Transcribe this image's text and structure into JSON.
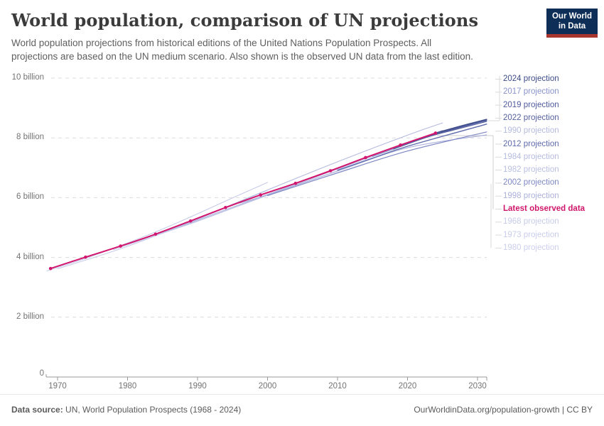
{
  "header": {
    "title": "World population, comparison of UN projections",
    "subtitle_lines": [
      "World population projections from historical editions of the United Nations Population Prospects. All",
      "projections are based on the UN medium scenario. Also shown is the observed UN data from the last edition."
    ],
    "logo": {
      "line1": "Our World",
      "line2": "in Data",
      "bg": "#0d2e57",
      "accent": "#a8352e"
    }
  },
  "footer": {
    "source_label": "Data source:",
    "source_text": " UN, World Population Prospects (1968 - 2024)",
    "credit": "OurWorldinData.org/population-growth | CC BY"
  },
  "chart_data": {
    "type": "line",
    "title": "World population, comparison of UN projections",
    "xlabel": "",
    "ylabel": "",
    "unit": "billion people",
    "x_range": [
      1968,
      2032
    ],
    "y_range": [
      0,
      10
    ],
    "grid": "horizontal-dashed",
    "legend_position": "right",
    "x_ticks": [
      {
        "value": 1970,
        "label": "1970"
      },
      {
        "value": 1980,
        "label": "1980"
      },
      {
        "value": 1990,
        "label": "1990"
      },
      {
        "value": 2000,
        "label": "2000"
      },
      {
        "value": 2010,
        "label": "2010"
      },
      {
        "value": 2020,
        "label": "2020"
      },
      {
        "value": 2030,
        "label": "2030"
      }
    ],
    "y_ticks": [
      {
        "value": 10,
        "label": "10 billion"
      },
      {
        "value": 8,
        "label": "8 billion"
      },
      {
        "value": 6,
        "label": "6 billion"
      },
      {
        "value": 4,
        "label": "4 billion"
      },
      {
        "value": 2,
        "label": "2 billion"
      },
      {
        "value": 0,
        "label": "0"
      }
    ],
    "series": [
      {
        "name": "1968-projection",
        "color": "#c7cbe9",
        "width": 1.1,
        "markers": false,
        "points": [
          [
            1968,
            3.55
          ],
          [
            1975,
            4.05
          ],
          [
            1985,
            4.95
          ],
          [
            1995,
            5.99
          ],
          [
            2000,
            6.51
          ]
        ]
      },
      {
        "name": "1973-projection",
        "color": "#c9cdea",
        "width": 1.1,
        "markers": false,
        "points": [
          [
            1970,
            3.62
          ],
          [
            1980,
            4.37
          ],
          [
            1990,
            5.28
          ],
          [
            2000,
            6.25
          ]
        ]
      },
      {
        "name": "1980-projection",
        "color": "#cbcfeb",
        "width": 1.1,
        "markers": false,
        "points": [
          [
            1978,
            4.26
          ],
          [
            1990,
            5.21
          ],
          [
            2000,
            6.1
          ]
        ]
      },
      {
        "name": "1982-projection",
        "color": "#babfe2",
        "width": 1.1,
        "markers": false,
        "points": [
          [
            1980,
            4.45
          ],
          [
            1990,
            5.23
          ],
          [
            2000,
            6.08
          ],
          [
            2010,
            6.96
          ],
          [
            2020,
            7.79
          ],
          [
            2025,
            8.21
          ]
        ]
      },
      {
        "name": "1984-projection",
        "color": "#b6bce0",
        "width": 1.1,
        "markers": false,
        "points": [
          [
            1982,
            4.6
          ],
          [
            1990,
            5.26
          ],
          [
            2000,
            6.11
          ],
          [
            2010,
            7.0
          ],
          [
            2020,
            7.84
          ],
          [
            2025,
            8.25
          ]
        ]
      },
      {
        "name": "1990-projection",
        "color": "#b4bade",
        "width": 1.1,
        "markers": false,
        "points": [
          [
            1988,
            5.09
          ],
          [
            1995,
            5.78
          ],
          [
            2000,
            6.26
          ],
          [
            2010,
            7.2
          ],
          [
            2020,
            8.09
          ],
          [
            2025,
            8.5
          ]
        ]
      },
      {
        "name": "1998-projection",
        "color": "#abb1da",
        "width": 1.2,
        "markers": false,
        "points": [
          [
            1996,
            5.82
          ],
          [
            2000,
            6.09
          ],
          [
            2010,
            6.89
          ],
          [
            2020,
            7.67
          ],
          [
            2031.3,
            8.1
          ]
        ]
      },
      {
        "name": "2002-projection",
        "color": "#7e88c4",
        "width": 1.2,
        "markers": false,
        "points": [
          [
            2000,
            6.07
          ],
          [
            2010,
            6.83
          ],
          [
            2020,
            7.56
          ],
          [
            2031.3,
            8.2
          ]
        ]
      },
      {
        "name": "2012-projection",
        "color": "#5e6aac",
        "width": 1.4,
        "markers": false,
        "points": [
          [
            2010,
            6.92
          ],
          [
            2015,
            7.32
          ],
          [
            2020,
            7.72
          ],
          [
            2031.3,
            8.46
          ]
        ]
      },
      {
        "name": "2017-projection",
        "color": "#8a93cb",
        "width": 1.3,
        "markers": false,
        "points": [
          [
            2015,
            7.38
          ],
          [
            2020,
            7.8
          ],
          [
            2025,
            8.19
          ],
          [
            2031.3,
            8.6
          ]
        ]
      },
      {
        "name": "2019-projection",
        "color": "#4e5a9c",
        "width": 1.4,
        "markers": false,
        "points": [
          [
            2018,
            7.63
          ],
          [
            2022,
            7.97
          ],
          [
            2026,
            8.26
          ],
          [
            2031.3,
            8.59
          ]
        ]
      },
      {
        "name": "2022-projection",
        "color": "#55619f",
        "width": 1.4,
        "markers": false,
        "points": [
          [
            2021,
            7.91
          ],
          [
            2025,
            8.17
          ],
          [
            2031.3,
            8.55
          ]
        ]
      },
      {
        "name": "2024-projection",
        "color": "#3d4c8a",
        "width": 1.5,
        "markers": false,
        "points": [
          [
            2024,
            8.16
          ],
          [
            2028,
            8.42
          ],
          [
            2031.3,
            8.62
          ]
        ]
      },
      {
        "name": "latest-observed-data",
        "color": "#d2156e",
        "width": 2,
        "markers": true,
        "points": [
          [
            1969,
            3.63
          ],
          [
            1974,
            4.01
          ],
          [
            1979,
            4.38
          ],
          [
            1984,
            4.78
          ],
          [
            1989,
            5.22
          ],
          [
            1994,
            5.67
          ],
          [
            1999,
            6.09
          ],
          [
            2004,
            6.48
          ],
          [
            2009,
            6.9
          ],
          [
            2014,
            7.34
          ],
          [
            2019,
            7.76
          ],
          [
            2024,
            8.16
          ]
        ]
      }
    ],
    "legend": [
      {
        "label": "2024 projection",
        "color": "#3d4c8a",
        "bold": false
      },
      {
        "label": "2017 projection",
        "color": "#8a93cb",
        "bold": false
      },
      {
        "label": "2019 projection",
        "color": "#4e5a9c",
        "bold": false
      },
      {
        "label": "2022 projection",
        "color": "#55619f",
        "bold": false
      },
      {
        "label": "1990 projection",
        "color": "#b4bade",
        "bold": false
      },
      {
        "label": "2012 projection",
        "color": "#5e6aac",
        "bold": false
      },
      {
        "label": "1984 projection",
        "color": "#b6bce0",
        "bold": false
      },
      {
        "label": "1982 projection",
        "color": "#babfe2",
        "bold": false
      },
      {
        "label": "2002 projection",
        "color": "#7e88c4",
        "bold": false
      },
      {
        "label": "1998 projection",
        "color": "#abb1da",
        "bold": false
      },
      {
        "label": "Latest observed data",
        "color": "#d0166b",
        "bold": true
      },
      {
        "label": "1968 projection",
        "color": "#c7cbe9",
        "bold": false
      },
      {
        "label": "1973 projection",
        "color": "#c9cdea",
        "bold": false
      },
      {
        "label": "1980 projection",
        "color": "#cbcfeb",
        "bold": false
      }
    ]
  }
}
